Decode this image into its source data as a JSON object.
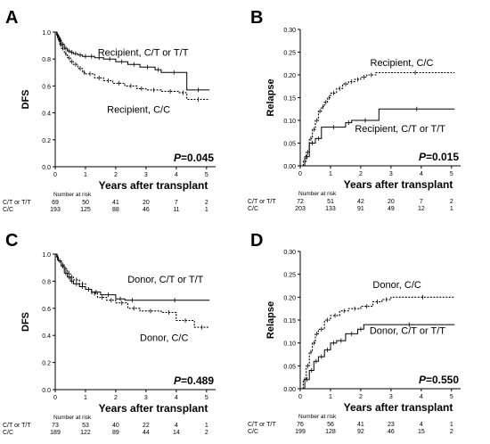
{
  "chart_data": [
    {
      "panel_label": "A",
      "type": "line",
      "step": true,
      "xlabel": "Years after transplant",
      "ylabel": "DFS",
      "xlim": [
        0,
        5.3
      ],
      "ylim": [
        0,
        1.0
      ],
      "x_ticks": [
        "0",
        "1",
        "2",
        "3",
        "4",
        "5"
      ],
      "y_ticks": [
        "0.0",
        "0.2",
        "0.4",
        "0.6",
        "0.8",
        "1.0"
      ],
      "p_label": "P",
      "p_value": "=0.045",
      "series": [
        {
          "name": "Recipient, C/T or T/T",
          "style": "solid",
          "x": [
            0,
            0.05,
            0.1,
            0.15,
            0.2,
            0.3,
            0.4,
            0.5,
            0.6,
            0.75,
            0.9,
            1.1,
            1.3,
            1.6,
            2.0,
            2.4,
            2.8,
            3.3,
            3.5,
            4.35,
            5.1
          ],
          "y": [
            1.0,
            0.98,
            0.96,
            0.94,
            0.91,
            0.88,
            0.86,
            0.85,
            0.84,
            0.83,
            0.82,
            0.82,
            0.81,
            0.8,
            0.78,
            0.76,
            0.74,
            0.72,
            0.7,
            0.57,
            0.57
          ]
        },
        {
          "name": "Recipient, C/C",
          "style": "dotted",
          "x": [
            0,
            0.05,
            0.1,
            0.15,
            0.2,
            0.3,
            0.4,
            0.5,
            0.6,
            0.75,
            0.9,
            1.0,
            1.3,
            1.6,
            1.9,
            2.3,
            2.7,
            3.0,
            3.5,
            4.1,
            4.35,
            5.1
          ],
          "y": [
            1.0,
            0.97,
            0.94,
            0.91,
            0.88,
            0.84,
            0.81,
            0.78,
            0.76,
            0.73,
            0.7,
            0.69,
            0.66,
            0.64,
            0.62,
            0.6,
            0.58,
            0.57,
            0.56,
            0.55,
            0.5,
            0.5
          ]
        }
      ],
      "annotations": [
        {
          "text": "Recipient, C/T or T/T",
          "x": 4.4,
          "y": 0.825
        },
        {
          "text": "Recipient, C/C",
          "x": 3.8,
          "y": 0.4
        }
      ],
      "risk_table": {
        "title": "Number at risk",
        "rows": [
          {
            "label": "C/T or T/T",
            "values": [
              "69",
              "50",
              "41",
              "20",
              "7",
              "2"
            ]
          },
          {
            "label": "C/C",
            "values": [
              "193",
              "125",
              "88",
              "46",
              "11",
              "1"
            ]
          }
        ]
      }
    },
    {
      "panel_label": "B",
      "type": "line",
      "step": true,
      "xlabel": "Years after transplant",
      "ylabel": "Relapse",
      "xlim": [
        0,
        5.3
      ],
      "ylim": [
        0,
        0.3
      ],
      "x_ticks": [
        "0",
        "1",
        "2",
        "3",
        "4",
        "5"
      ],
      "y_ticks": [
        "0.00",
        "0.05",
        "0.10",
        "0.15",
        "0.20",
        "0.25",
        "0.30"
      ],
      "p_label": "P",
      "p_value": "=0.015",
      "series": [
        {
          "name": "Recipient, C/C",
          "style": "dotted",
          "x": [
            0,
            0.1,
            0.2,
            0.3,
            0.4,
            0.5,
            0.6,
            0.7,
            0.8,
            0.9,
            1.0,
            1.2,
            1.4,
            1.6,
            1.8,
            2.0,
            2.2,
            2.5,
            5.1
          ],
          "y": [
            0,
            0.01,
            0.03,
            0.06,
            0.08,
            0.1,
            0.12,
            0.13,
            0.14,
            0.15,
            0.16,
            0.17,
            0.18,
            0.185,
            0.19,
            0.195,
            0.2,
            0.205,
            0.205
          ]
        },
        {
          "name": "Recipient, C/T or T/T",
          "style": "solid",
          "x": [
            0,
            0.15,
            0.3,
            0.5,
            0.7,
            1.5,
            1.7,
            2.6,
            5.1
          ],
          "y": [
            0,
            0.02,
            0.05,
            0.06,
            0.085,
            0.095,
            0.1,
            0.125,
            0.125
          ]
        }
      ],
      "annotations": [
        {
          "text": "Recipient, C/C",
          "x": 4.4,
          "y": 0.22
        },
        {
          "text": "Recipient, C/T or T/T",
          "x": 4.8,
          "y": 0.075
        }
      ],
      "risk_table": {
        "title": "Number at risk",
        "rows": [
          {
            "label": "C/T or T/T",
            "values": [
              "72",
              "51",
              "42",
              "20",
              "7",
              "2"
            ]
          },
          {
            "label": "C/C",
            "values": [
              "203",
              "133",
              "91",
              "49",
              "12",
              "1"
            ]
          }
        ]
      }
    },
    {
      "panel_label": "C",
      "type": "line",
      "step": true,
      "xlabel": "Years after transplant",
      "ylabel": "DFS",
      "xlim": [
        0,
        5.3
      ],
      "ylim": [
        0,
        1.0
      ],
      "x_ticks": [
        "0",
        "1",
        "2",
        "3",
        "4",
        "5"
      ],
      "y_ticks": [
        "0.0",
        "0.2",
        "0.4",
        "0.6",
        "0.8",
        "1.0"
      ],
      "p_label": "P",
      "p_value": "=0.489",
      "series": [
        {
          "name": "Donor, C/T or T/T",
          "style": "solid",
          "x": [
            0,
            0.05,
            0.1,
            0.2,
            0.3,
            0.4,
            0.5,
            0.6,
            0.8,
            1.0,
            1.2,
            1.5,
            2.0,
            2.3,
            2.8,
            5.1
          ],
          "y": [
            1.0,
            0.98,
            0.95,
            0.91,
            0.86,
            0.83,
            0.8,
            0.78,
            0.76,
            0.74,
            0.72,
            0.7,
            0.67,
            0.66,
            0.66,
            0.66
          ]
        },
        {
          "name": "Donor, C/C",
          "style": "dotted",
          "x": [
            0,
            0.05,
            0.1,
            0.2,
            0.3,
            0.4,
            0.5,
            0.6,
            0.8,
            1.0,
            1.2,
            1.4,
            1.7,
            2.0,
            2.4,
            2.8,
            3.5,
            4.0,
            4.6,
            5.1
          ],
          "y": [
            1.0,
            0.97,
            0.95,
            0.92,
            0.89,
            0.86,
            0.83,
            0.81,
            0.78,
            0.74,
            0.71,
            0.68,
            0.66,
            0.64,
            0.6,
            0.58,
            0.57,
            0.51,
            0.46,
            0.46
          ]
        }
      ],
      "annotations": [
        {
          "text": "Donor, C/T or T/T",
          "x": 4.9,
          "y": 0.79
        },
        {
          "text": "Donor, C/C",
          "x": 4.4,
          "y": 0.36
        }
      ],
      "risk_table": {
        "title": "Number at risk",
        "rows": [
          {
            "label": "C/T or T/T",
            "values": [
              "73",
              "53",
              "40",
              "22",
              "4",
              "1"
            ]
          },
          {
            "label": "C/C",
            "values": [
              "189",
              "122",
              "89",
              "44",
              "14",
              "2"
            ]
          }
        ]
      }
    },
    {
      "panel_label": "D",
      "type": "line",
      "step": true,
      "xlabel": "Years after transplant",
      "ylabel": "Relapse",
      "xlim": [
        0,
        5.3
      ],
      "ylim": [
        0,
        0.3
      ],
      "x_ticks": [
        "0",
        "1",
        "2",
        "3",
        "4",
        "5"
      ],
      "y_ticks": [
        "0.00",
        "0.05",
        "0.10",
        "0.15",
        "0.20",
        "0.25",
        "0.30"
      ],
      "p_label": "P",
      "p_value": "=0.550",
      "series": [
        {
          "name": "Donor, C/C",
          "style": "dotted",
          "x": [
            0,
            0.1,
            0.2,
            0.3,
            0.4,
            0.5,
            0.6,
            0.8,
            1.0,
            1.3,
            1.6,
            2.0,
            2.4,
            2.7,
            3.0,
            5.1
          ],
          "y": [
            0,
            0.02,
            0.05,
            0.08,
            0.1,
            0.12,
            0.13,
            0.15,
            0.16,
            0.17,
            0.175,
            0.18,
            0.19,
            0.195,
            0.2,
            0.2
          ]
        },
        {
          "name": "Donor, C/T or T/T",
          "style": "solid",
          "x": [
            0,
            0.15,
            0.3,
            0.45,
            0.6,
            0.8,
            1.0,
            1.2,
            1.5,
            1.9,
            2.1,
            5.1
          ],
          "y": [
            0,
            0.02,
            0.04,
            0.06,
            0.07,
            0.085,
            0.1,
            0.105,
            0.12,
            0.13,
            0.14,
            0.14
          ]
        }
      ],
      "annotations": [
        {
          "text": "Donor, C/C",
          "x": 4.0,
          "y": 0.22
        },
        {
          "text": "Donor, C/T or T/T",
          "x": 4.8,
          "y": 0.12
        }
      ],
      "risk_table": {
        "title": "Number at risk",
        "rows": [
          {
            "label": "C/T or T/T",
            "values": [
              "76",
              "56",
              "41",
              "23",
              "4",
              "1"
            ]
          },
          {
            "label": "C/C",
            "values": [
              "199",
              "128",
              "92",
              "46",
              "15",
              "2"
            ]
          }
        ]
      }
    }
  ]
}
